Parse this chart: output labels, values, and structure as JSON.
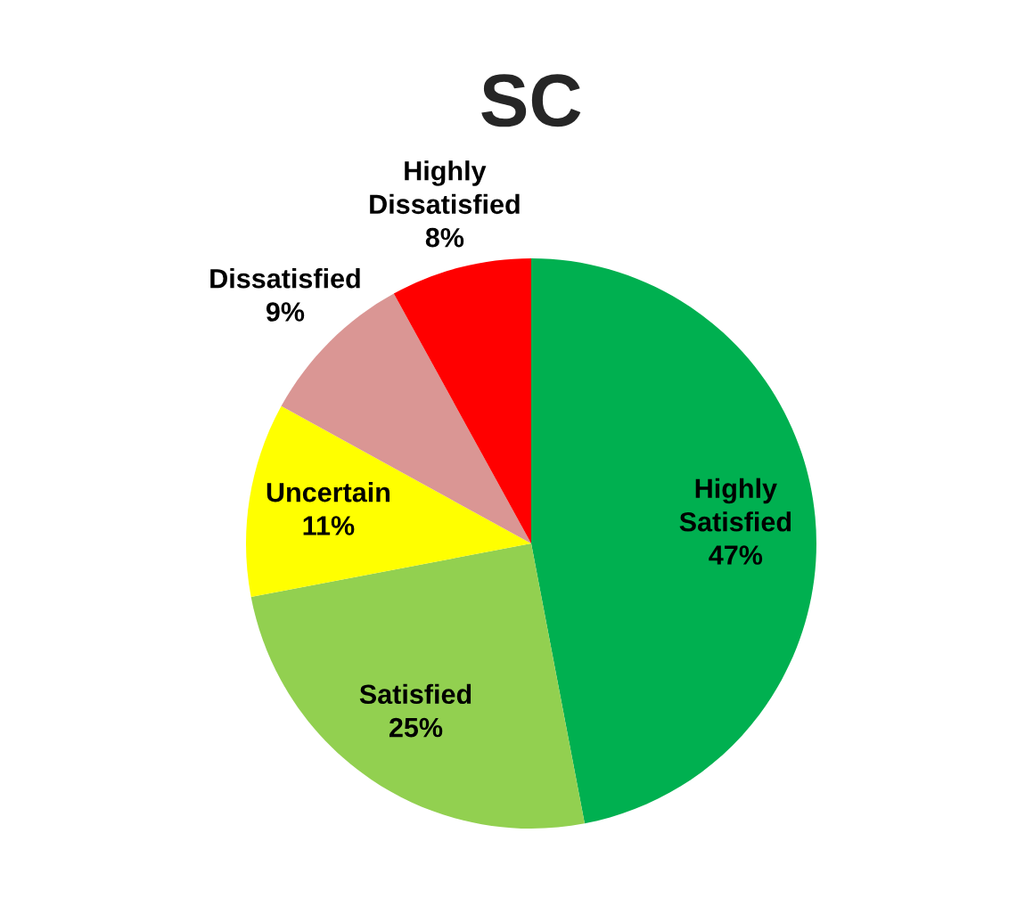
{
  "chart_data": {
    "type": "pie",
    "title": "SC",
    "categories": [
      "Highly Satisfied",
      "Satisfied",
      "Uncertain",
      "Dissatisfied",
      "Highly Dissatisfied"
    ],
    "values": [
      47,
      25,
      11,
      9,
      8
    ],
    "colors": [
      "#00b050",
      "#92d050",
      "#ffff00",
      "#da9694",
      "#ff0000"
    ],
    "value_labels": [
      "47%",
      "25%",
      "11%",
      "9%",
      "8%"
    ]
  }
}
